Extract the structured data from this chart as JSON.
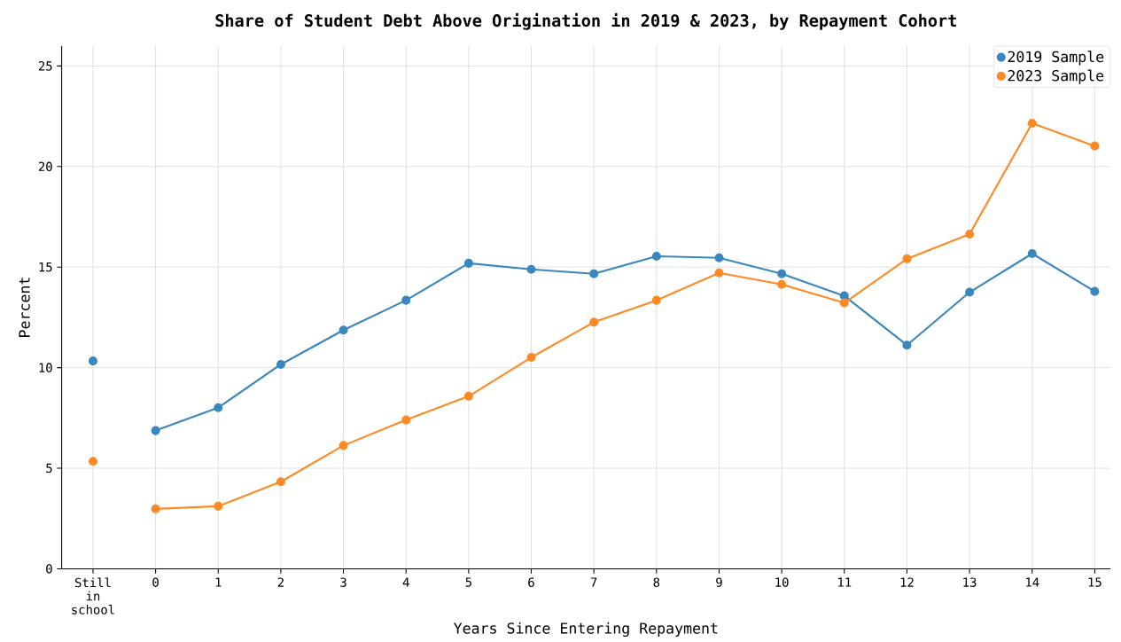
{
  "chart_data": {
    "type": "line",
    "title": "Share of Student Debt Above Origination in 2019 & 2023, by Repayment Cohort",
    "xlabel": "Years Since Entering Repayment",
    "ylabel": "Percent",
    "categories": [
      "Still in school",
      "0",
      "1",
      "2",
      "3",
      "4",
      "5",
      "6",
      "7",
      "8",
      "9",
      "10",
      "11",
      "12",
      "13",
      "14",
      "15"
    ],
    "series": [
      {
        "name": "2019 Sample",
        "color": "#3a87bf",
        "values": [
          null,
          6.87,
          8.01,
          10.16,
          11.87,
          13.35,
          15.19,
          14.89,
          14.67,
          15.54,
          15.46,
          14.67,
          13.57,
          11.12,
          13.75,
          15.67,
          13.79
        ]
      },
      {
        "name": "2023 Sample",
        "color": "#fe8a25",
        "values": [
          null,
          2.98,
          3.11,
          4.33,
          6.13,
          7.4,
          8.58,
          10.51,
          12.26,
          13.35,
          14.71,
          14.14,
          13.22,
          15.41,
          16.64,
          22.15,
          21.02
        ]
      },
      {
        "type": "scatter",
        "color": "#3a87bf",
        "values": [
          10.33,
          null,
          null,
          null,
          null,
          null,
          null,
          null,
          null,
          null,
          null,
          null,
          null,
          null,
          null,
          null,
          null
        ]
      },
      {
        "type": "scatter",
        "color": "#fe8a25",
        "values": [
          5.34,
          null,
          null,
          null,
          null,
          null,
          null,
          null,
          null,
          null,
          null,
          null,
          null,
          null,
          null,
          null,
          null
        ]
      }
    ],
    "ylim": [
      0,
      26
    ],
    "yticks": [
      0,
      5,
      10,
      15,
      20,
      25
    ],
    "grid": true,
    "legend": "top right",
    "marker": "circle",
    "line_style": "solid"
  }
}
